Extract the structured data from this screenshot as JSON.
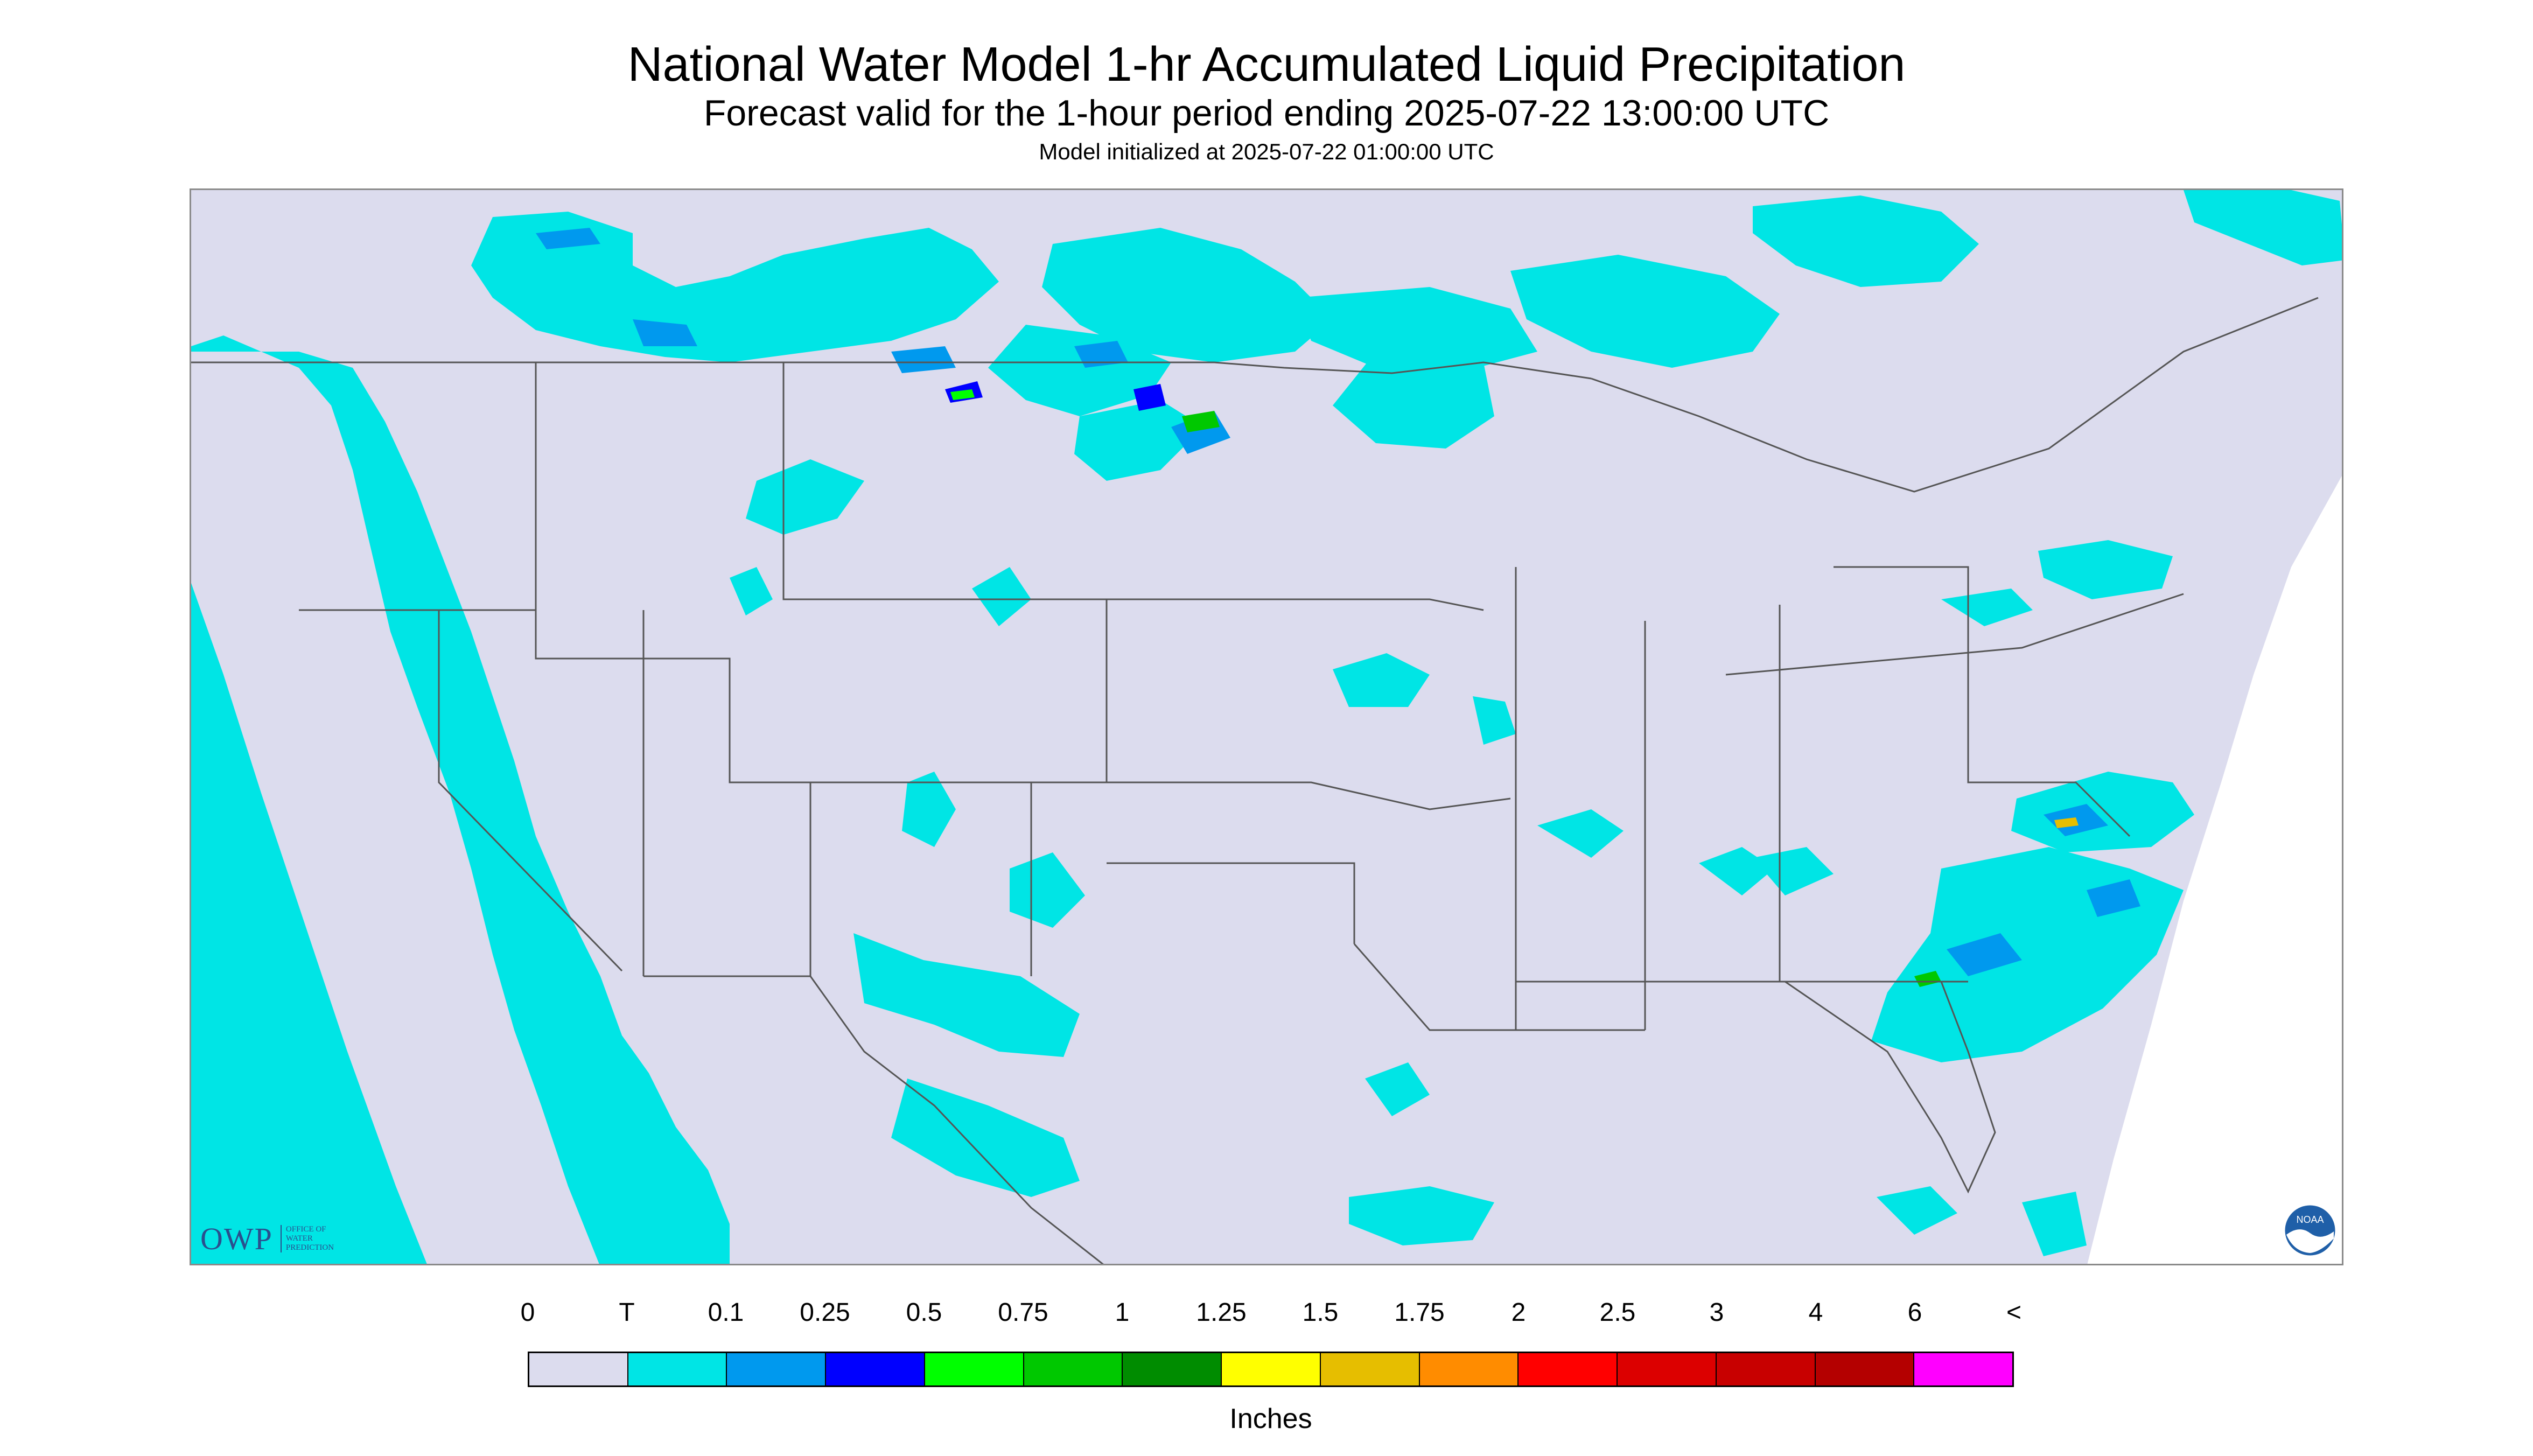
{
  "header": {
    "title": "National Water Model 1-hr Accumulated Liquid Precipitation",
    "subtitle": "Forecast valid for the 1-hour period ending 2025-07-22 13:00:00 UTC",
    "init_line": "Model initialized at 2025-07-22 01:00:00 UTC"
  },
  "map": {
    "background_color": "#dcdcee",
    "boundary_color": "#555555",
    "logos": {
      "owp": {
        "mark": "OWP",
        "line1": "OFFICE OF",
        "line2": "WATER",
        "line3": "PREDICTION"
      },
      "noaa": {
        "text": "NOAA"
      }
    }
  },
  "legend": {
    "labels": [
      "0",
      "T",
      "0.1",
      "0.25",
      "0.5",
      "0.75",
      "1",
      "1.25",
      "1.5",
      "1.75",
      "2",
      "2.5",
      "3",
      "4",
      "6",
      "<"
    ],
    "colors": [
      "#dcdcee",
      "#00e5e5",
      "#0099ee",
      "#0000ff",
      "#00ff00",
      "#00c800",
      "#008c00",
      "#ffff00",
      "#e6be00",
      "#ff8c00",
      "#ff0000",
      "#dc0000",
      "#c80000",
      "#b40000",
      "#ff00ff",
      "#9955cc"
    ],
    "unit": "Inches"
  }
}
